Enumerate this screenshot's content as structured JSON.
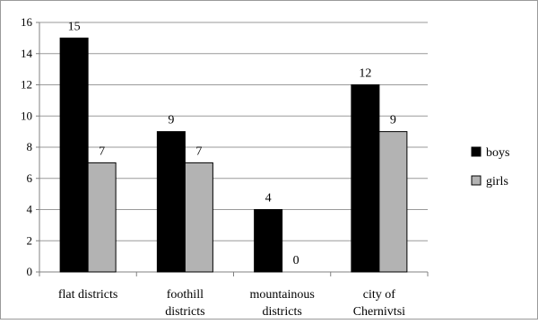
{
  "chart_data": {
    "type": "bar",
    "title": "",
    "xlabel": "",
    "ylabel": "",
    "categories": [
      [
        "flat districts"
      ],
      [
        "foothill",
        "districts"
      ],
      [
        "mountainous",
        "districts"
      ],
      [
        "city of",
        "Chernivtsi"
      ]
    ],
    "series": [
      {
        "name": "boys",
        "values": [
          15,
          9,
          4,
          12
        ],
        "labels": [
          "15",
          "9",
          "4",
          "12"
        ],
        "color": "#000000"
      },
      {
        "name": "girls",
        "values": [
          7,
          7,
          0,
          9
        ],
        "labels": [
          "7",
          "7",
          "0",
          "9"
        ],
        "color": "#b3b3b3"
      }
    ],
    "ylim": [
      0,
      16
    ],
    "yticks": [
      0,
      2,
      4,
      6,
      8,
      10,
      12,
      14,
      16
    ],
    "ytick_labels": [
      "0",
      "2",
      "4",
      "6",
      "8",
      "10",
      "12",
      "14",
      "16"
    ],
    "grid": true,
    "legend_position": "right"
  }
}
